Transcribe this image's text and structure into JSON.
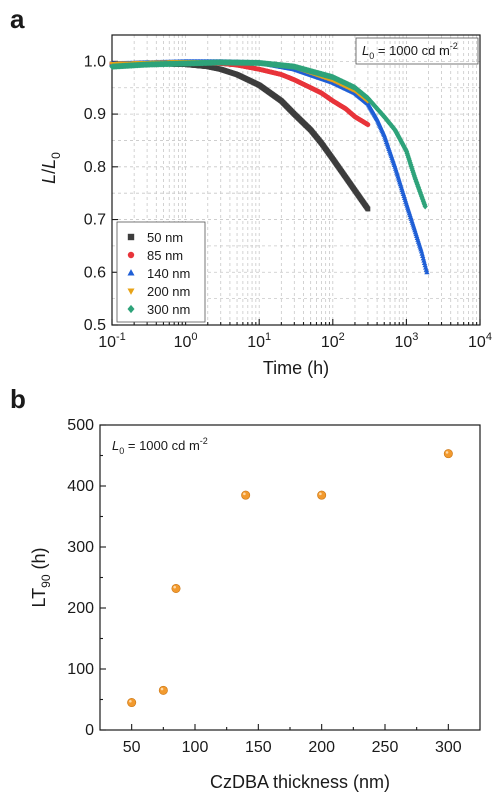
{
  "chart_data": [
    {
      "panel": "a",
      "type": "scatter",
      "xscale": "log",
      "xlabel": "Time (h)",
      "ylabel_main": "L",
      "ylabel_sub": "0",
      "xlim": [
        0.1,
        10000
      ],
      "ylim": [
        0.5,
        1.05
      ],
      "xticks": [
        {
          "value": 0.1,
          "base": "10",
          "exp": "-1"
        },
        {
          "value": 1,
          "base": "10",
          "exp": "0"
        },
        {
          "value": 10,
          "base": "10",
          "exp": "1"
        },
        {
          "value": 100,
          "base": "10",
          "exp": "2"
        },
        {
          "value": 1000,
          "base": "10",
          "exp": "3"
        },
        {
          "value": 10000,
          "base": "10",
          "exp": "4"
        }
      ],
      "yticks": [
        {
          "value": 0.5,
          "label": "0.5"
        },
        {
          "value": 0.6,
          "label": "0.6"
        },
        {
          "value": 0.7,
          "label": "0.7"
        },
        {
          "value": 0.8,
          "label": "0.8"
        },
        {
          "value": 0.9,
          "label": "0.9"
        },
        {
          "value": 1.0,
          "label": "1.0"
        }
      ],
      "grid": true,
      "legend_position": "bottom-left",
      "annotation": {
        "symbol": "L",
        "sub": "0",
        "text": " = 1000 cd m",
        "sup": "-2"
      },
      "series": [
        {
          "name": "50 nm",
          "color": "#3d3d3d",
          "marker": "square",
          "x": [
            0.1,
            0.3,
            1,
            2,
            3,
            5,
            10,
            20,
            30,
            50,
            70,
            100,
            150,
            200,
            300
          ],
          "y": [
            0.995,
            0.996,
            0.994,
            0.99,
            0.985,
            0.975,
            0.955,
            0.925,
            0.9,
            0.87,
            0.845,
            0.815,
            0.78,
            0.755,
            0.72
          ]
        },
        {
          "name": "85 nm",
          "color": "#e8343a",
          "marker": "circle",
          "x": [
            0.1,
            0.3,
            1,
            3,
            5,
            10,
            20,
            30,
            50,
            70,
            100,
            150,
            200,
            300
          ],
          "y": [
            0.995,
            0.997,
            0.998,
            0.996,
            0.993,
            0.985,
            0.975,
            0.965,
            0.95,
            0.94,
            0.925,
            0.91,
            0.895,
            0.88
          ]
        },
        {
          "name": "140 nm",
          "color": "#1f5fd6",
          "marker": "triangle-up",
          "x": [
            0.1,
            0.3,
            1,
            3,
            10,
            30,
            100,
            200,
            300,
            400,
            500,
            700,
            1000,
            1300,
            1600,
            1900
          ],
          "y": [
            0.995,
            0.997,
            0.999,
            0.999,
            0.997,
            0.985,
            0.96,
            0.94,
            0.92,
            0.89,
            0.86,
            0.8,
            0.73,
            0.68,
            0.64,
            0.6
          ]
        },
        {
          "name": "200 nm",
          "color": "#e8a317",
          "marker": "triangle-down",
          "x": [
            0.1,
            0.3,
            1,
            3,
            10,
            30,
            100,
            200,
            300
          ],
          "y": [
            0.995,
            0.997,
            0.999,
            0.999,
            0.997,
            0.99,
            0.965,
            0.945,
            0.925
          ]
        },
        {
          "name": "300 nm",
          "color": "#2ea37a",
          "marker": "diamond",
          "x": [
            0.1,
            0.3,
            1,
            3,
            10,
            30,
            100,
            200,
            300,
            500,
            700,
            1000,
            1300,
            1600,
            1800
          ],
          "y": [
            0.99,
            0.994,
            0.996,
            0.998,
            0.997,
            0.99,
            0.97,
            0.95,
            0.93,
            0.895,
            0.87,
            0.83,
            0.78,
            0.745,
            0.725
          ]
        }
      ]
    },
    {
      "panel": "b",
      "type": "scatter",
      "xlabel": "CzDBA thickness (nm)",
      "ylabel_main": "LT",
      "ylabel_sub": "90",
      "ylabel_unit": " (h)",
      "xlim": [
        25,
        325
      ],
      "ylim": [
        0,
        500
      ],
      "xticks": [
        50,
        100,
        150,
        200,
        250,
        300
      ],
      "yticks": [
        0,
        100,
        200,
        300,
        400,
        500
      ],
      "grid": false,
      "annotation": {
        "symbol": "L",
        "sub": "0",
        "text": " = 1000 cd m",
        "sup": "-2"
      },
      "series": [
        {
          "color": "#f29a2e",
          "marker": "circle",
          "x": [
            50,
            75,
            85,
            140,
            200,
            300
          ],
          "y": [
            45,
            65,
            232,
            385,
            385,
            453
          ]
        }
      ]
    }
  ]
}
